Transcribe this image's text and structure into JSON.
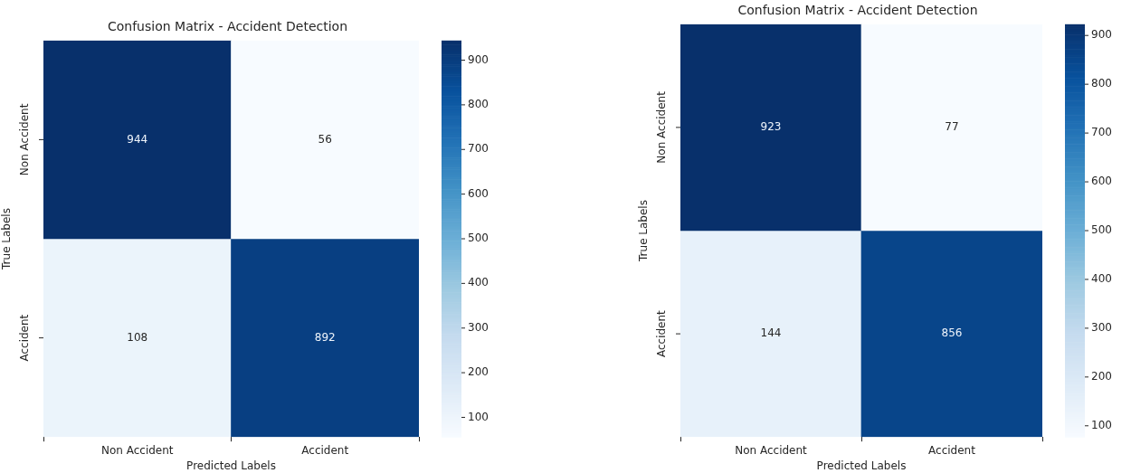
{
  "chart_data": [
    {
      "type": "heatmap",
      "title": "Confusion Matrix - Accident Detection",
      "xlabel": "Predicted Labels",
      "ylabel": "True Labels",
      "categories": [
        "Non Accident",
        "Accident"
      ],
      "y_categories": [
        "Non Accident",
        "Accident"
      ],
      "cells": [
        [
          944,
          56
        ],
        [
          108,
          892
        ]
      ],
      "data_labels": true,
      "clim": [
        56,
        944
      ],
      "cticks": [
        100,
        200,
        300,
        400,
        500,
        600,
        700,
        800,
        900
      ]
    },
    {
      "type": "heatmap",
      "title": "Confusion Matrix - Accident Detection",
      "xlabel": "Predicted Labels",
      "ylabel": "True Labels",
      "categories": [
        "Non Accident",
        "Accident"
      ],
      "y_categories": [
        "Non Accident",
        "Accident"
      ],
      "cells": [
        [
          923,
          77
        ],
        [
          144,
          856
        ]
      ],
      "data_labels": true,
      "clim": [
        77,
        923
      ],
      "cticks": [
        100,
        200,
        300,
        400,
        500,
        600,
        700,
        800,
        900
      ]
    }
  ]
}
